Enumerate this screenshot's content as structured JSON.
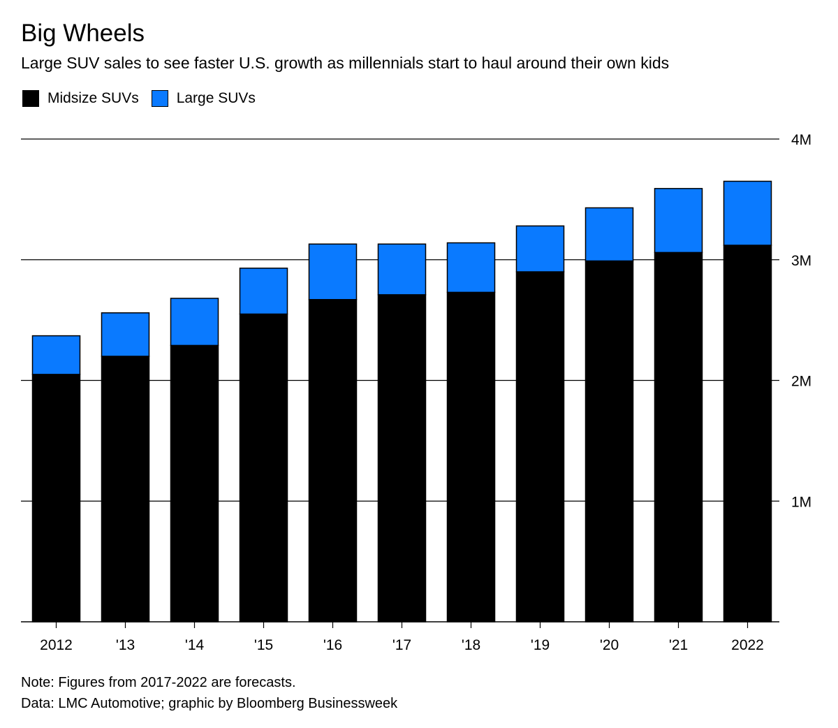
{
  "header": {
    "title": "Big Wheels",
    "subtitle": "Large SUV sales to see faster U.S. growth as millennials start to haul around their own kids"
  },
  "legend": [
    {
      "label": "Midsize SUVs",
      "color": "#000000"
    },
    {
      "label": "Large SUVs",
      "color": "#0a7aff"
    }
  ],
  "footer": {
    "note": "Note: Figures from 2017-2022 are forecasts.",
    "source": "Data: LMC Automotive; graphic by Bloomberg Businessweek"
  },
  "chart_data": {
    "type": "bar",
    "stacked": true,
    "title": "Big Wheels",
    "subtitle": "Large SUV sales to see faster U.S. growth as millennials start to haul around their own kids",
    "categories": [
      "2012",
      "'13",
      "'14",
      "'15",
      "'16",
      "'17",
      "'18",
      "'19",
      "'20",
      "'21",
      "2022"
    ],
    "series": [
      {
        "name": "Midsize SUVs",
        "color": "#000000",
        "values": [
          2.05,
          2.2,
          2.29,
          2.55,
          2.67,
          2.71,
          2.73,
          2.9,
          2.99,
          3.06,
          3.12
        ]
      },
      {
        "name": "Large SUVs",
        "color": "#0a7aff",
        "values": [
          0.32,
          0.36,
          0.39,
          0.38,
          0.46,
          0.42,
          0.41,
          0.38,
          0.44,
          0.53,
          0.53
        ]
      }
    ],
    "ylim": [
      0,
      4
    ],
    "y_ticks": [
      1,
      2,
      3,
      4
    ],
    "y_tick_labels": [
      "1M",
      "2M",
      "3M",
      "4M"
    ],
    "y_axis_position": "right",
    "grid": true,
    "legend_position": "top-left"
  }
}
